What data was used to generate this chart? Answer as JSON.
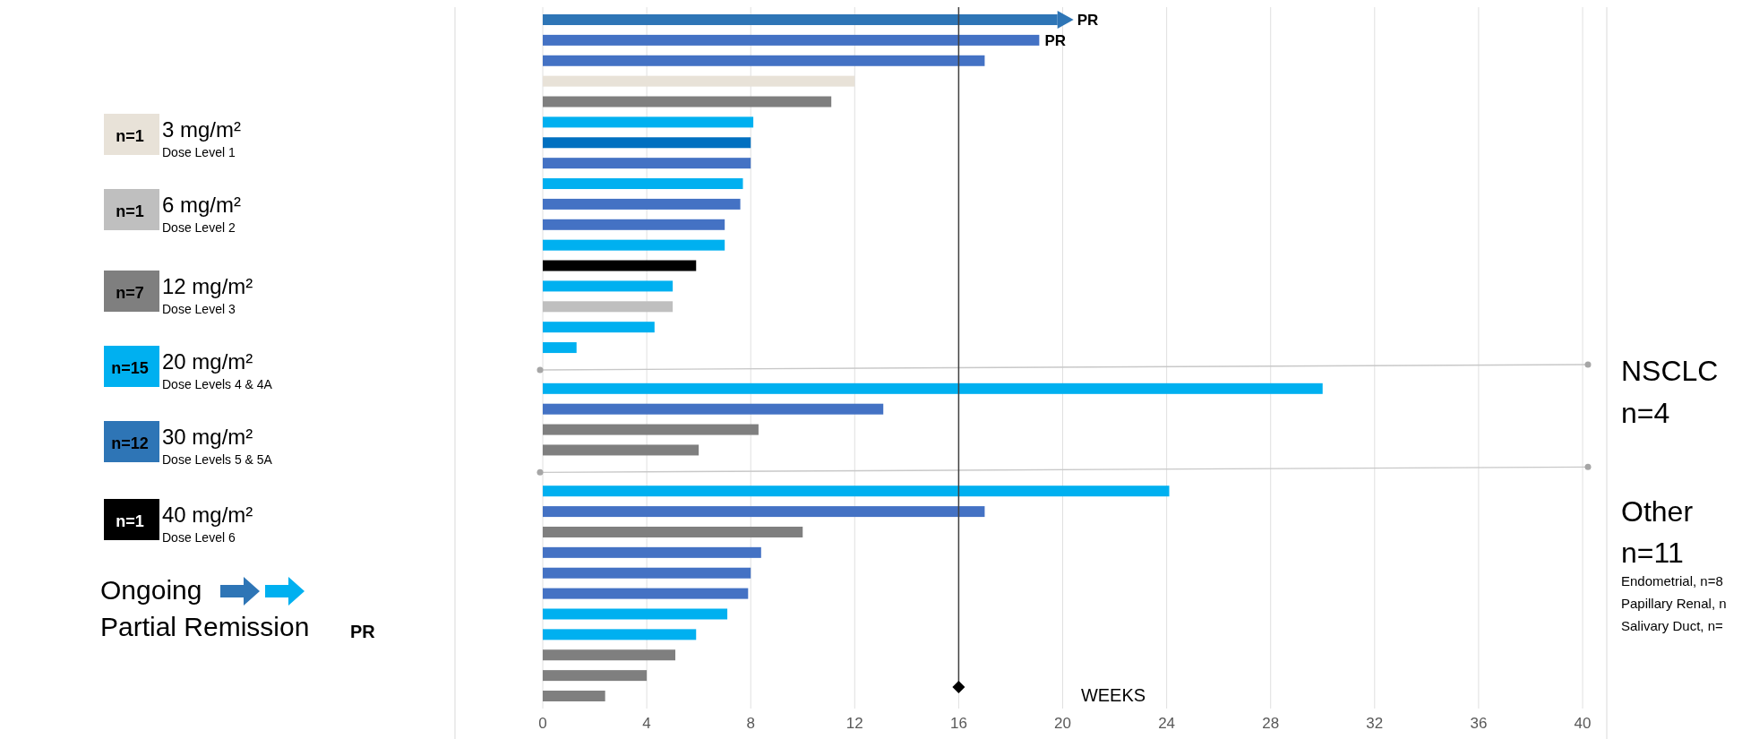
{
  "chart_data": {
    "type": "bar",
    "orientation": "horizontal",
    "xlabel": "WEEKS",
    "xlim": [
      0,
      40
    ],
    "xticks": [
      0,
      4,
      8,
      12,
      16,
      20,
      24,
      28,
      32,
      36,
      40
    ],
    "grid": "x",
    "legend": "left",
    "tick_labels": "x",
    "categories": [
      null,
      null,
      null,
      null,
      null,
      null,
      null,
      null,
      null,
      null,
      null,
      null,
      null,
      null,
      null,
      null,
      null,
      null,
      null,
      null,
      null,
      null,
      null,
      null,
      null,
      null,
      null,
      null,
      null,
      null,
      null,
      null,
      null,
      null
    ],
    "ref_lines": [
      {
        "axis": "x",
        "value": 16,
        "color": "#404040"
      }
    ],
    "series": [
      {
        "name": "3 mg/m²",
        "color": "#e8e2d8",
        "values": [
          null,
          null,
          null,
          12,
          null,
          null,
          null,
          null,
          null,
          null,
          null,
          null,
          null,
          null,
          null,
          null,
          null,
          null,
          null,
          null,
          null,
          null,
          null,
          null,
          null,
          null,
          null,
          null,
          null,
          null,
          null,
          null,
          null,
          null
        ]
      },
      {
        "name": "6 mg/m²",
        "color": "#bfbfbf",
        "values": [
          null,
          null,
          null,
          null,
          null,
          null,
          null,
          null,
          null,
          null,
          null,
          null,
          null,
          null,
          5,
          null,
          null,
          null,
          null,
          null,
          null,
          null,
          null,
          null,
          null,
          null,
          null,
          null,
          null,
          null,
          null,
          null,
          null,
          null
        ]
      },
      {
        "name": "12 mg/m²",
        "color": "#7f7f7f",
        "values": [
          null,
          null,
          null,
          null,
          11.1,
          null,
          null,
          null,
          null,
          null,
          null,
          null,
          null,
          null,
          null,
          null,
          null,
          null,
          null,
          null,
          8.3,
          6,
          null,
          null,
          null,
          10,
          null,
          null,
          null,
          null,
          null,
          5.1,
          4,
          2.4
        ]
      },
      {
        "name": "20 mg/m²",
        "color": "#00b0f0",
        "values": [
          null,
          null,
          null,
          null,
          null,
          8.1,
          null,
          null,
          7.7,
          null,
          null,
          7,
          null,
          5,
          null,
          4.3,
          1.3,
          null,
          30,
          null,
          null,
          null,
          null,
          24.1,
          null,
          null,
          null,
          null,
          null,
          7.1,
          5.9,
          null,
          null,
          null
        ]
      },
      {
        "name": "30 mg/m²",
        "color": "#2e75b6",
        "values": [
          19.8,
          19.1,
          17,
          null,
          null,
          null,
          8,
          8,
          null,
          7.6,
          7,
          null,
          null,
          null,
          null,
          null,
          null,
          null,
          null,
          13.1,
          null,
          null,
          null,
          null,
          17,
          null,
          8.4,
          8,
          7.9,
          null,
          null,
          null,
          null,
          null
        ],
        "colors": [
          "#2e75b6",
          "#4472c4",
          "#4472c4",
          null,
          null,
          null,
          "#0070c0",
          "#4472c4",
          null,
          "#4472c4",
          "#4472c4",
          null,
          null,
          null,
          null,
          null,
          null,
          null,
          null,
          "#4472c4",
          null,
          null,
          null,
          null,
          "#4472c4",
          null,
          "#4472c4",
          "#4472c4",
          "#4472c4",
          null,
          null,
          null,
          null,
          null
        ],
        "value_labels": [
          "PR",
          "PR",
          null,
          null,
          null,
          null,
          null,
          null,
          null,
          null,
          null,
          null,
          null,
          null,
          null,
          null,
          null,
          null,
          null,
          null,
          null,
          null,
          null,
          null,
          null,
          null,
          null,
          null,
          null,
          null,
          null,
          null,
          null,
          null
        ]
      },
      {
        "name": "40 mg/m²",
        "color": "#000000",
        "values": [
          null,
          null,
          null,
          null,
          null,
          null,
          null,
          null,
          null,
          null,
          null,
          null,
          5.9,
          null,
          null,
          null,
          null,
          null,
          null,
          null,
          null,
          null,
          null,
          null,
          null,
          null,
          null,
          null,
          null,
          null,
          null,
          null,
          null,
          null
        ]
      }
    ],
    "annotations": [
      "n=1",
      "n=1",
      "n=7",
      "n=15",
      "n=12",
      "n=1",
      "Dose Level 1",
      "Dose Level 2",
      "Dose Level 3",
      "Dose Levels 4 & 4A",
      "Dose Levels 5 & 5A",
      "Dose Level 6",
      "Ongoing",
      "Partial Remission",
      "PR",
      "NSCLC",
      "n=4",
      "Other",
      "n=11",
      "Endometrial, n=8",
      "Papillary Renal, n",
      "Salivary Duct, n="
    ]
  }
}
